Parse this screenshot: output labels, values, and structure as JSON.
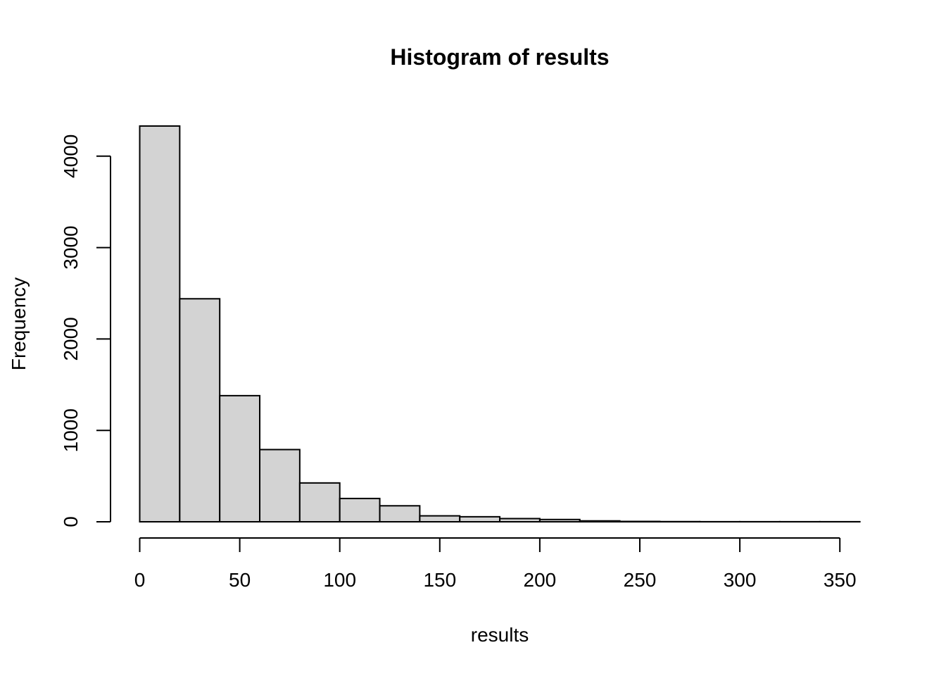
{
  "chart_data": {
    "type": "bar",
    "title": "Histogram of results",
    "xlabel": "results",
    "ylabel": "Frequency",
    "bar_color": "#d3d3d3",
    "bin_edges": [
      0,
      20,
      40,
      60,
      80,
      100,
      120,
      140,
      160,
      180,
      200,
      220,
      240,
      260,
      280,
      300,
      320,
      340,
      360
    ],
    "values": [
      4330,
      2440,
      1380,
      790,
      425,
      255,
      175,
      65,
      55,
      35,
      25,
      10,
      4,
      2,
      1,
      1,
      1,
      1
    ],
    "xlim": [
      0,
      360
    ],
    "ylim": [
      0,
      4330
    ],
    "x_ticks": [
      0,
      50,
      100,
      150,
      200,
      250,
      300,
      350
    ],
    "x_tick_labels": [
      "0",
      "50",
      "100",
      "150",
      "200",
      "250",
      "300",
      "350"
    ],
    "y_ticks": [
      0,
      1000,
      2000,
      3000,
      4000
    ],
    "y_tick_labels": [
      "0",
      "1000",
      "2000",
      "3000",
      "4000"
    ],
    "grid": false,
    "legend": "none"
  }
}
